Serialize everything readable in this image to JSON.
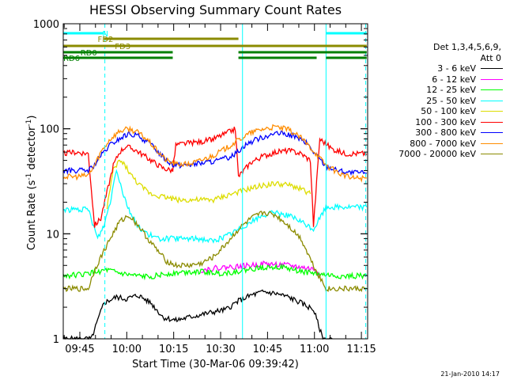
{
  "chart_data": {
    "type": "line",
    "title": "HESSI Observing Summary Count Rates",
    "xlabel": "Start Time (30-Mar-06 09:39:42)",
    "ylabel_main": "Count Rate (s",
    "ylabel_sup": "-1",
    "ylabel_mid": " detector",
    "ylabel_sup2": "-1",
    "ylabel_end": ")",
    "yscale": "log",
    "ylim": [
      1,
      1000
    ],
    "xlim": [
      "09:39:42",
      "11:17:00"
    ],
    "x_ticks": [
      "09:45",
      "10:00",
      "10:15",
      "10:30",
      "10:45",
      "11:00",
      "11:15"
    ],
    "x_tick_minutes": [
      5.3,
      20.3,
      35.3,
      50.3,
      65.3,
      80.3,
      95.3
    ],
    "y_ticks": [
      "1",
      "10",
      "100",
      "1000"
    ],
    "legend_title_1": "Det 1,3,4,5,6,9,",
    "legend_title_2": "Att 0",
    "series": [
      {
        "name": "3 - 6 keV",
        "color": "#000000",
        "x": [
          0,
          3,
          6,
          9,
          13,
          17,
          20,
          24,
          28,
          32,
          36,
          40,
          44,
          48,
          52,
          56,
          60,
          64,
          68,
          72,
          76,
          80,
          83,
          86
        ],
        "y": [
          1,
          1,
          1,
          1,
          2.2,
          2.5,
          2.4,
          2.6,
          2.2,
          1.6,
          1.5,
          1.6,
          1.7,
          1.8,
          1.9,
          2.3,
          2.6,
          2.8,
          2.7,
          2.5,
          2.2,
          1.9,
          1.0,
          1.0
        ]
      },
      {
        "name": "6 - 12 keV",
        "color": "#ff00ff",
        "x": [
          44,
          48,
          52,
          56,
          60,
          64,
          68,
          72,
          76,
          80,
          82
        ],
        "y": [
          4.5,
          4.7,
          4.8,
          4.9,
          5.0,
          5.2,
          5.1,
          5.0,
          4.8,
          4.6,
          4.2
        ]
      },
      {
        "name": "12 - 25 keV",
        "color": "#00ff00",
        "x": [
          0,
          6,
          10,
          14,
          18,
          22,
          26,
          30,
          34,
          38,
          42,
          46,
          50,
          54,
          58,
          62,
          66,
          70,
          74,
          78,
          82,
          86,
          90,
          94,
          97
        ],
        "y": [
          4,
          4.1,
          4.3,
          4.5,
          4.2,
          4.0,
          3.9,
          4.0,
          4.2,
          4.3,
          4.4,
          4.3,
          4.2,
          4.3,
          4.5,
          4.7,
          4.9,
          4.8,
          4.5,
          4.3,
          4.1,
          4.0,
          3.9,
          4.0,
          4.0
        ]
      },
      {
        "name": "25 - 50 keV",
        "color": "#00ffff",
        "x": [
          0,
          4,
          8,
          11,
          13,
          15,
          17,
          19,
          21,
          23,
          25,
          27,
          30,
          33,
          36,
          40,
          44,
          48,
          52,
          56,
          60,
          64,
          68,
          72,
          76,
          80,
          84,
          88,
          92,
          97
        ],
        "y": [
          17,
          17,
          17,
          9,
          12,
          20,
          42,
          25,
          17,
          13,
          11,
          10,
          9,
          9,
          9,
          9,
          9,
          8.5,
          9.5,
          11,
          13,
          15,
          16,
          15,
          13,
          11,
          18,
          18,
          18,
          18
        ]
      },
      {
        "name": "50 - 100 keV",
        "color": "#dddd00",
        "x": [
          14,
          16,
          18,
          20,
          22,
          25,
          28,
          31,
          34,
          37,
          40,
          44,
          48,
          52,
          56,
          60,
          64,
          68,
          72,
          76,
          79
        ],
        "y": [
          18,
          40,
          50,
          44,
          35,
          28,
          24,
          23,
          22,
          21,
          21,
          21,
          21,
          23,
          25,
          27,
          29,
          30,
          29,
          27,
          24
        ]
      },
      {
        "name": "100 - 300 keV",
        "color": "#ff0000",
        "x": [
          0,
          4,
          8,
          10,
          12,
          14,
          16,
          18,
          20,
          23,
          26,
          29,
          32,
          35,
          36,
          40,
          44,
          48,
          52,
          55,
          56,
          60,
          64,
          68,
          72,
          76,
          79,
          80,
          82,
          86,
          90,
          94,
          97
        ],
        "y": [
          58,
          60,
          58,
          12,
          14,
          25,
          45,
          60,
          68,
          63,
          55,
          48,
          42,
          40,
          70,
          73,
          75,
          80,
          90,
          100,
          35,
          48,
          55,
          60,
          62,
          58,
          50,
          12,
          80,
          64,
          58,
          58,
          58
        ]
      },
      {
        "name": "300 - 800 keV",
        "color": "#0000ff",
        "x": [
          0,
          4,
          8,
          10,
          12,
          15,
          18,
          21,
          24,
          27,
          30,
          33,
          35,
          38,
          42,
          46,
          50,
          54,
          56,
          58,
          62,
          66,
          70,
          74,
          78,
          80,
          84,
          88,
          92,
          97
        ],
        "y": [
          40,
          40,
          40,
          45,
          55,
          70,
          80,
          90,
          85,
          75,
          62,
          50,
          46,
          45,
          46,
          48,
          50,
          55,
          62,
          70,
          80,
          88,
          90,
          85,
          72,
          60,
          44,
          40,
          38,
          38
        ]
      },
      {
        "name": "800 - 7000 keV",
        "color": "#ff8c00",
        "x": [
          0,
          4,
          8,
          10,
          12,
          15,
          18,
          21,
          24,
          27,
          30,
          33,
          36,
          40,
          44,
          48,
          52,
          56,
          60,
          64,
          68,
          72,
          76,
          80,
          84,
          88,
          92,
          97
        ],
        "y": [
          35,
          35,
          36,
          45,
          60,
          80,
          95,
          100,
          92,
          78,
          62,
          50,
          46,
          46,
          50,
          56,
          65,
          78,
          92,
          100,
          104,
          98,
          82,
          62,
          45,
          38,
          34,
          34
        ]
      },
      {
        "name": "7000 - 20000 keV",
        "color": "#8b8b00",
        "x": [
          0,
          4,
          8,
          10,
          12,
          15,
          18,
          21,
          24,
          27,
          30,
          33,
          36,
          40,
          44,
          48,
          52,
          56,
          60,
          64,
          68,
          72,
          76,
          80,
          84,
          88,
          92,
          97
        ],
        "y": [
          3,
          3,
          3,
          4.5,
          6,
          9,
          13,
          15,
          12,
          9,
          7,
          5.5,
          5,
          5,
          5.2,
          6,
          8,
          11,
          14,
          16,
          15,
          12,
          9,
          5,
          3,
          3,
          3,
          3
        ]
      }
    ],
    "flags": [
      {
        "name": "N",
        "color": "#00ffff",
        "segments": [
          [
            0,
            13
          ],
          [
            84,
            97
          ]
        ]
      },
      {
        "name": "FD2",
        "color": "#8b8b00",
        "segments": [
          [
            13,
            56
          ]
        ]
      },
      {
        "name": "FD3",
        "color": "#8b8b00",
        "segments": [
          [
            0,
            97
          ]
        ]
      },
      {
        "name": "RD0",
        "color": "#008000",
        "segments": [
          [
            0,
            35
          ],
          [
            56,
            97
          ]
        ]
      },
      {
        "name": "RD6",
        "color": "#008000",
        "segments": [
          [
            0,
            12
          ],
          [
            12,
            35
          ],
          [
            56,
            81
          ],
          [
            84,
            97
          ]
        ]
      }
    ],
    "grid": false,
    "legend_position": "right"
  },
  "footer": {
    "timestamp": "21-Jan-2010 14:17"
  }
}
